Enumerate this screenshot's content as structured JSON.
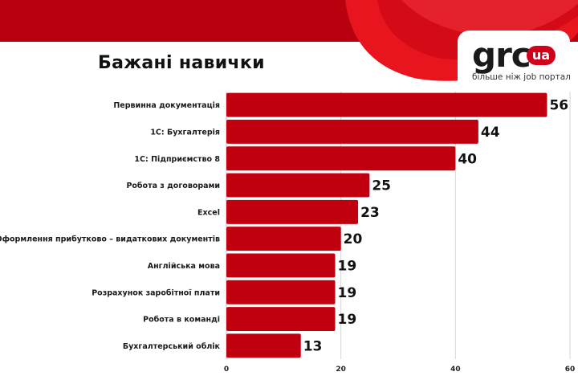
{
  "brand": {
    "logo_main": "grc",
    "logo_badge": "ua",
    "tagline": "більше ніж job портал",
    "accent_color": "#d0021b",
    "dark_red": "#b00010"
  },
  "chart_data": {
    "type": "bar",
    "orientation": "horizontal",
    "title": "Бажані навички",
    "categories": [
      "Первинна документація",
      "1С: Бухгалтерія",
      "1С: Підприємство 8",
      "Робота з договорами",
      "Excel",
      "Оформлення прибутково – видаткових документів",
      "Англійська мова",
      "Розрахунок  заробітної плати",
      "Робота в команді",
      "Бухгалтерський облік"
    ],
    "values": [
      56,
      44,
      40,
      25,
      23,
      20,
      19,
      19,
      19,
      13
    ],
    "xlim": [
      0,
      60
    ],
    "xticks": [
      0,
      20,
      40,
      60
    ],
    "xlabel": "",
    "ylabel": "",
    "grid": "vertical",
    "bar_color": "#c0000f",
    "legend": "none"
  }
}
